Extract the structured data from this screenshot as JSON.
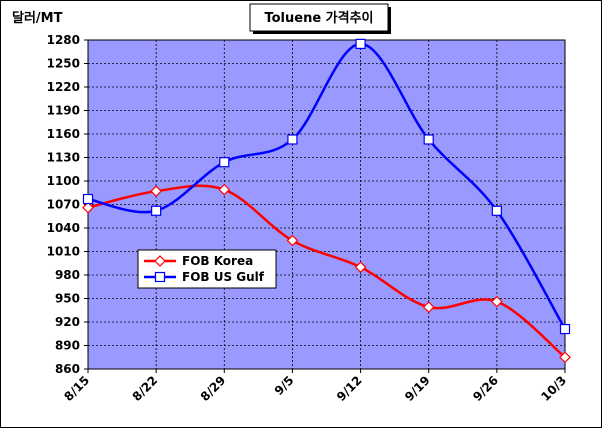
{
  "chart_data": {
    "type": "line",
    "title": "Toluene 가격추이",
    "ylabel": "달러/MT",
    "xlabel": "",
    "categories": [
      "8/15",
      "8/22",
      "8/29",
      "9/5",
      "9/12",
      "9/19",
      "9/26",
      "10/3"
    ],
    "ylim": [
      860,
      1280
    ],
    "yticks": [
      860,
      890,
      920,
      950,
      980,
      1010,
      1040,
      1070,
      1100,
      1130,
      1160,
      1190,
      1220,
      1250,
      1280
    ],
    "grid": true,
    "legend_position": "left",
    "series": [
      {
        "name": "FOB Korea",
        "color": "#ff0000",
        "marker": "diamond",
        "values": [
          1066,
          1087,
          1089,
          1024,
          990,
          939,
          946,
          875
        ]
      },
      {
        "name": "FOB US Gulf",
        "color": "#0000ff",
        "marker": "square",
        "values": [
          1077,
          1062,
          1124,
          1153,
          1275,
          1153,
          1062,
          911
        ]
      }
    ],
    "colors": {
      "plot_background": "#9999ff",
      "gridline": "#000000"
    }
  }
}
